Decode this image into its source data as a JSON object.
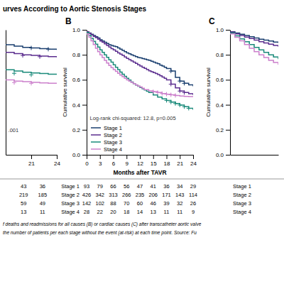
{
  "chart_data": [
    {
      "type": "line",
      "xlim": [
        18,
        24
      ],
      "ylim": [
        0.0,
        1.0
      ],
      "xticks": [
        21,
        24
      ],
      "tick_labels": "x",
      "series": [
        {
          "color": "#1a3f6f",
          "x": [
            18,
            19,
            20,
            21,
            22,
            23,
            24
          ],
          "values": [
            0.88,
            0.87,
            0.86,
            0.855,
            0.85,
            0.845,
            0.84
          ],
          "censored": {
            "x": [
              21,
              23
            ],
            "values": [
              0.855,
              0.845
            ]
          }
        },
        {
          "color": "#5b2d8e",
          "x": [
            18,
            19,
            20,
            21,
            22,
            23,
            24
          ],
          "values": [
            0.82,
            0.81,
            0.8,
            0.795,
            0.79,
            0.785,
            0.78
          ],
          "censored": {
            "x": [
              20,
              22
            ],
            "values": [
              0.795,
              0.785
            ]
          }
        },
        {
          "color": "#1a8a7a",
          "x": [
            18,
            19,
            20,
            21,
            22,
            23,
            24
          ],
          "values": [
            0.68,
            0.67,
            0.66,
            0.655,
            0.65,
            0.645,
            0.64
          ],
          "censored": {
            "x": [
              19,
              21
            ],
            "values": [
              0.652,
              0.64
            ]
          }
        },
        {
          "color": "#cc80cc",
          "x": [
            18,
            19,
            20,
            21,
            22,
            23,
            24
          ],
          "values": [
            0.6,
            0.59,
            0.585,
            0.58,
            0.575,
            0.572,
            0.57
          ],
          "censored": {
            "x": [
              19,
              21
            ],
            "values": [
              0.578,
              0.572
            ]
          }
        }
      ],
      "annotations": [
        {
          "text": ".001"
        }
      ],
      "at_risk": {
        "columns": [
          [
            43,
            219,
            59,
            13
          ],
          [
            36,
            185,
            49,
            11
          ]
        ]
      }
    },
    {
      "type": "line",
      "title": "urves According to Aortic Stenosis Stages",
      "panel_label": "B",
      "xlabel": "Months after TAVR",
      "ylabel": "Cumulative survival",
      "xlim": [
        0,
        24
      ],
      "ylim": [
        0.0,
        1.0
      ],
      "xticks": [
        0,
        3,
        6,
        9,
        12,
        15,
        18,
        21,
        24
      ],
      "yticks": [
        {
          "value": 0.0,
          "label": "0.0"
        },
        0.2,
        0.4,
        0.6,
        0.8,
        {
          "value": 1.0,
          "label": "1.0"
        }
      ],
      "legend": "lower left",
      "series": [
        {
          "name": "Stage 1",
          "color": "#1a3f6f",
          "x": [
            0,
            0.5,
            1,
            1.5,
            2,
            2.5,
            3,
            3.5,
            4,
            4.5,
            5,
            5.5,
            6,
            6.5,
            7,
            7.5,
            8,
            8.5,
            9,
            9.5,
            10,
            10.5,
            11,
            11.5,
            12,
            12.5,
            13,
            13.5,
            14,
            14.5,
            15,
            15.5,
            16,
            16.5,
            17,
            17.5,
            18,
            19,
            20,
            21,
            22,
            23,
            24
          ],
          "values": [
            0.985,
            0.975,
            0.965,
            0.955,
            0.945,
            0.935,
            0.92,
            0.91,
            0.9,
            0.89,
            0.88,
            0.875,
            0.87,
            0.865,
            0.855,
            0.845,
            0.835,
            0.825,
            0.815,
            0.808,
            0.8,
            0.792,
            0.785,
            0.778,
            0.775,
            0.77,
            0.765,
            0.76,
            0.755,
            0.748,
            0.742,
            0.735,
            0.728,
            0.718,
            0.71,
            0.7,
            0.69,
            0.67,
            0.62,
            0.59,
            0.572,
            0.56,
            0.548
          ],
          "censored": {
            "x": [
              19,
              21,
              22
            ],
            "values": [
              0.67,
              0.59,
              0.572
            ]
          }
        },
        {
          "name": "Stage 2",
          "color": "#5b2d8e",
          "x": [
            0,
            0.5,
            1,
            1.5,
            2,
            2.5,
            3,
            3.5,
            4,
            4.5,
            5,
            5.5,
            6,
            6.5,
            7,
            7.5,
            8,
            8.5,
            9,
            9.5,
            10,
            10.5,
            11,
            11.5,
            12,
            12.5,
            13,
            13.5,
            14,
            14.5,
            15,
            15.5,
            16,
            16.5,
            17,
            17.5,
            18,
            19,
            20,
            21,
            22,
            23,
            24
          ],
          "values": [
            0.985,
            0.972,
            0.96,
            0.948,
            0.938,
            0.925,
            0.91,
            0.9,
            0.888,
            0.875,
            0.862,
            0.85,
            0.84,
            0.828,
            0.815,
            0.805,
            0.795,
            0.782,
            0.772,
            0.762,
            0.752,
            0.742,
            0.732,
            0.72,
            0.71,
            0.7,
            0.692,
            0.682,
            0.672,
            0.665,
            0.658,
            0.65,
            0.642,
            0.632,
            0.622,
            0.612,
            0.6,
            0.565,
            0.535,
            0.51,
            0.498,
            0.488,
            0.478
          ],
          "censored": {
            "x": [
              19,
              21,
              22
            ],
            "values": [
              0.565,
              0.51,
              0.498
            ]
          }
        },
        {
          "name": "Stage 3",
          "color": "#1a8a7a",
          "x": [
            0,
            0.5,
            1,
            1.5,
            2,
            2.5,
            3,
            3.5,
            4,
            4.5,
            5,
            5.5,
            6,
            6.5,
            7,
            7.5,
            8,
            8.5,
            9,
            9.5,
            10,
            10.5,
            11,
            11.5,
            12,
            12.5,
            13,
            13.5,
            14,
            15,
            16,
            17,
            18,
            19,
            20,
            21,
            22,
            23,
            24
          ],
          "values": [
            0.978,
            0.955,
            0.932,
            0.908,
            0.885,
            0.862,
            0.84,
            0.82,
            0.8,
            0.78,
            0.76,
            0.742,
            0.72,
            0.7,
            0.682,
            0.662,
            0.645,
            0.628,
            0.612,
            0.598,
            0.582,
            0.57,
            0.558,
            0.548,
            0.538,
            0.528,
            0.518,
            0.508,
            0.498,
            0.478,
            0.462,
            0.448,
            0.435,
            0.422,
            0.41,
            0.398,
            0.385,
            0.372,
            0.36
          ],
          "censored": {
            "x": [
              18,
              19,
              20,
              21,
              22,
              23
            ],
            "values": [
              0.435,
              0.422,
              0.41,
              0.398,
              0.385,
              0.372
            ]
          }
        },
        {
          "name": "Stage 4",
          "color": "#cc80cc",
          "x": [
            0,
            0.5,
            1,
            1.5,
            2,
            2.5,
            3,
            3.5,
            4,
            4.5,
            5,
            5.5,
            6,
            6.5,
            7,
            7.5,
            8,
            8.5,
            9,
            9.5,
            10,
            10.5,
            11,
            11.5,
            12,
            12.5,
            13,
            14,
            15,
            16,
            17,
            18,
            19,
            20,
            21,
            22,
            23,
            24
          ],
          "values": [
            0.968,
            0.94,
            0.912,
            0.882,
            0.852,
            0.825,
            0.8,
            0.778,
            0.755,
            0.735,
            0.715,
            0.698,
            0.682,
            0.668,
            0.652,
            0.638,
            0.625,
            0.612,
            0.6,
            0.59,
            0.58,
            0.57,
            0.56,
            0.55,
            0.542,
            0.532,
            0.522,
            0.512,
            0.505,
            0.498,
            0.49,
            0.485,
            0.48,
            0.475,
            0.47,
            0.468,
            0.466,
            0.465
          ],
          "censored": {
            "x": [
              15,
              16,
              17,
              18,
              19,
              20
            ],
            "values": [
              0.505,
              0.498,
              0.49,
              0.485,
              0.48,
              0.475
            ]
          }
        }
      ],
      "annotations": [
        {
          "text": "Log-rank chi-squared: 12.8, p=0.005"
        }
      ],
      "at_risk": {
        "labels": [
          "Stage 1",
          "Stage 2",
          "Stage 3",
          "Stage 4"
        ],
        "timepoints": [
          0,
          3,
          6,
          9,
          12,
          15,
          18,
          21,
          24
        ],
        "values": [
          [
            93,
            79,
            66,
            56,
            47,
            41,
            36,
            34,
            29
          ],
          [
            426,
            342,
            313,
            266,
            235,
            206,
            171,
            143,
            114
          ],
          [
            142,
            102,
            88,
            70,
            60,
            46,
            39,
            32,
            26
          ],
          [
            28,
            22,
            20,
            18,
            14,
            13,
            11,
            11,
            9
          ]
        ]
      },
      "notes": [
        "f deaths and readmissions for all causes (B) or cardiac causes (C) after transcatheter aortic valve",
        "the number of patients per each stage without the event (at-risk) at each time point. Source: Fu"
      ]
    },
    {
      "type": "line",
      "panel_label": "C",
      "ylabel": "Cumulative survival",
      "xlim": [
        0,
        5
      ],
      "ylim": [
        0.0,
        1.0
      ],
      "yticks": [
        {
          "value": 0.0,
          "label": "0.0"
        },
        0.2,
        0.4,
        0.6,
        0.8,
        {
          "value": 1.0,
          "label": "1.0"
        }
      ],
      "tick_labels": "y",
      "series": [
        {
          "color": "#1a3f6f",
          "x": [
            0,
            0.5,
            1,
            1.5,
            2,
            2.5,
            3,
            3.5,
            4,
            4.5,
            5
          ],
          "values": [
            0.985,
            0.975,
            0.965,
            0.955,
            0.945,
            0.935,
            0.925,
            0.918,
            0.91,
            0.902,
            0.895
          ]
        },
        {
          "color": "#5b2d8e",
          "x": [
            0,
            0.5,
            1,
            1.5,
            2,
            2.5,
            3,
            3.5,
            4,
            4.5,
            5
          ],
          "values": [
            0.982,
            0.968,
            0.955,
            0.942,
            0.93,
            0.918,
            0.905,
            0.895,
            0.885,
            0.875,
            0.865
          ]
        },
        {
          "color": "#1a8a7a",
          "x": [
            0,
            0.5,
            1,
            1.5,
            2,
            2.5,
            3,
            3.5,
            4,
            4.5,
            5
          ],
          "values": [
            0.975,
            0.952,
            0.928,
            0.905,
            0.882,
            0.86,
            0.84,
            0.82,
            0.8,
            0.782,
            0.765
          ]
        },
        {
          "color": "#cc80cc",
          "x": [
            0,
            0.5,
            1,
            1.5,
            2,
            2.5,
            3,
            3.5,
            4,
            4.5,
            5
          ],
          "values": [
            0.968,
            0.94,
            0.912,
            0.882,
            0.852,
            0.825,
            0.8,
            0.778,
            0.755,
            0.738,
            0.72
          ]
        }
      ],
      "at_risk": {
        "labels": [
          "Stage 1",
          "Stage 2",
          "Stage 3",
          "Stage 4"
        ]
      }
    }
  ]
}
